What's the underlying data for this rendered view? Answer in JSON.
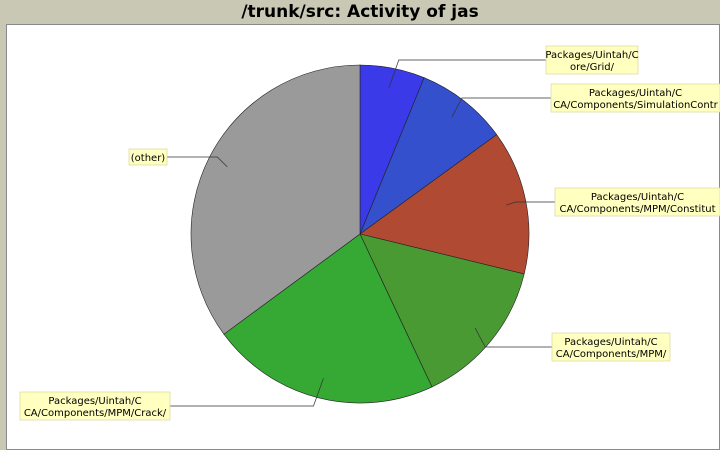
{
  "chart_data": {
    "type": "pie",
    "title": "/trunk/src: Activity of jas",
    "slices": [
      {
        "label": [
          "Packages/Uintah/C",
          "ore/Grid/"
        ],
        "value": 6.2,
        "color": "#3a3ae8"
      },
      {
        "label": [
          "Packages/Uintah/C",
          "CA/Components/SimulationContr"
        ],
        "value": 8.8,
        "color": "#3450cc"
      },
      {
        "label": [
          "Packages/Uintah/C",
          "CA/Components/MPM/Constitut"
        ],
        "value": 13.8,
        "color": "#b04a32"
      },
      {
        "label": [
          "Packages/Uintah/C",
          "CA/Components/MPM/"
        ],
        "value": 14.2,
        "color": "#4a9a34"
      },
      {
        "label": [
          "Packages/Uintah/C",
          "CA/Components/MPM/Crack/"
        ],
        "value": 21.9,
        "color": "#36a834"
      },
      {
        "label": [
          "(other)"
        ],
        "value": 35.1,
        "color": "#9a9a9a"
      }
    ]
  }
}
